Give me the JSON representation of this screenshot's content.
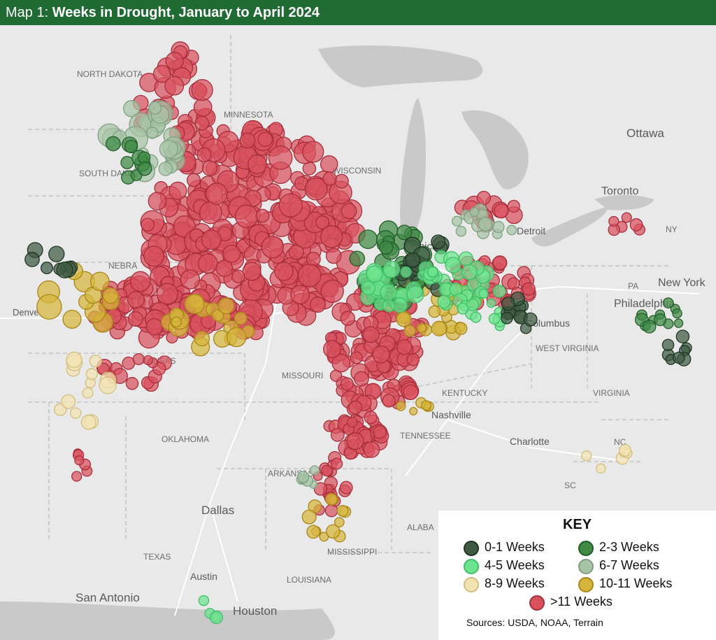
{
  "title": {
    "prefix": "Map 1:",
    "main": "Weeks in Drought, January to April 2024"
  },
  "regions": {
    "north_dakota": "NORTH DAKOTA",
    "minnesota": "MINNESOTA",
    "south_dakota": "SOUTH DAKOTA",
    "nebraska": "NEBRA",
    "wisconsin": "WISCONSIN",
    "kansas": "KANSAS",
    "missouri": "MISSOURI",
    "oklahoma": "OKLAHOMA",
    "arkansas": "ARKANSAS",
    "texas": "TEXAS",
    "louisiana": "LOUISIANA",
    "mississippi": "MISSISSIPPI",
    "alabama": "ALABA",
    "tennessee": "TENNESSEE",
    "kentucky": "KENTUCKY",
    "west_virginia": "WEST VIRGINIA",
    "virginia": "VIRGINIA",
    "nc": "NC",
    "sc": "SC",
    "pa": "PA",
    "ny": "NY"
  },
  "cities": {
    "ottawa": "Ottawa",
    "toronto": "Toronto",
    "detroit": "Detroit",
    "chicago": "Chica",
    "new_york": "New York",
    "philadelphia": "Philadelphia",
    "columbus": "Columbus",
    "nashville": "Nashville",
    "charlotte": "Charlotte",
    "dallas": "Dallas",
    "austin": "Austin",
    "san_antonio": "San Antonio",
    "houston": "Houston",
    "denver": "Denve"
  },
  "legend": {
    "title": "KEY",
    "items": [
      {
        "label": "0-1 Weeks",
        "fill": "#3f5a43",
        "stroke": "#1f3323"
      },
      {
        "label": "2-3 Weeks",
        "fill": "#3f8a45",
        "stroke": "#235c2b"
      },
      {
        "label": "4-5 Weeks",
        "fill": "#6ee38f",
        "stroke": "#3ec066"
      },
      {
        "label": "6-7 Weeks",
        "fill": "#a7c5a6",
        "stroke": "#7f9f80"
      },
      {
        "label": "8-9 Weeks",
        "fill": "#f2e3b2",
        "stroke": "#d2bd7c"
      },
      {
        "label": "10-11 Weeks",
        "fill": "#d6b53a",
        "stroke": "#a88618"
      },
      {
        "label": ">11 Weeks",
        "fill": "#d8525e",
        "stroke": "#a82d3a"
      }
    ],
    "source": "Sources: USDA, NOAA, Terrain"
  },
  "colors": {
    "title_bar": "#1f6b33",
    "land": "#e9e9e9",
    "water": "#c9c9c9"
  }
}
